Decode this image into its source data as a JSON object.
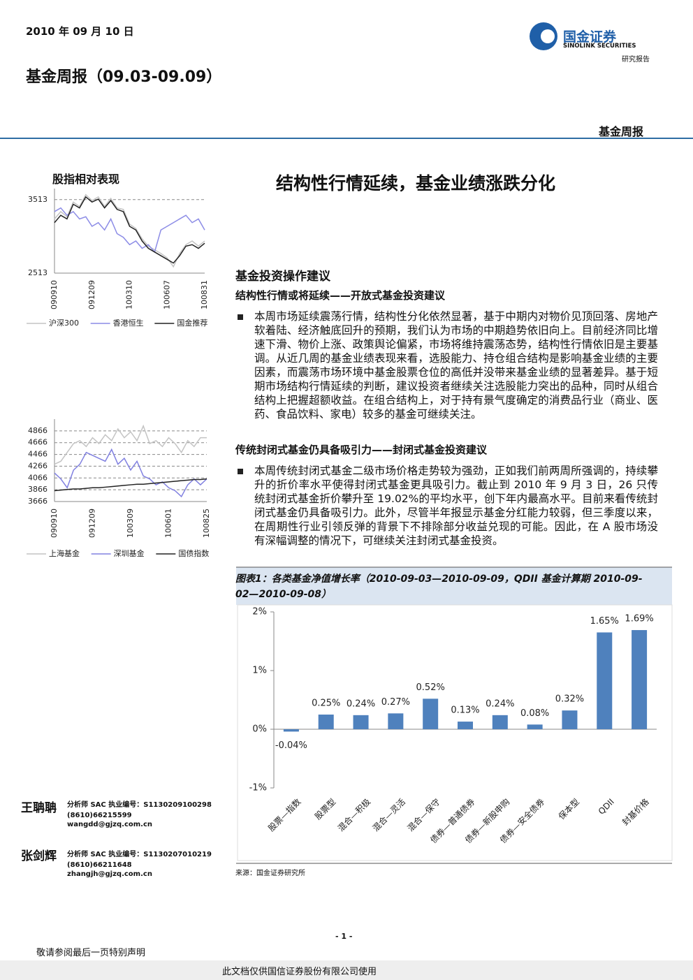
{
  "header": {
    "date": "2010 年 09 月 10 日",
    "title": "基金周报（09.03-09.09）",
    "logo_cn": "国金证券",
    "logo_en": "SINOLINK SECURITIES",
    "report_type": "研究报告",
    "section": "基金周报"
  },
  "main": {
    "headline": "结构性行情延续，基金业绩涨跌分化",
    "heading": "基金投资操作建议",
    "sections": [
      {
        "heading": "结构性行情或将延续——开放式基金投资建议",
        "paragraph": "本周市场延续震荡行情，结构性分化依然显著，基于中期内对物价见顶回落、房地产软着陆、经济触底回升的预期，我们认为市场的中期趋势依旧向上。目前经济同比增速下滑、物价上涨、政策舆论偏紧，市场将维持震荡态势，结构性行情依旧是主要基调。从近几周的基金业绩表现来看，选股能力、持仓组合结构是影响基金业绩的主要因素，而震荡市场环境中基金股票仓位的高低并没带来基金业绩的显著差异。基于短期市场结构行情延续的判断，建议投资者继续关注选股能力突出的品种，同时从组合结构上把握超额收益。在组合结构上，对于持有景气度确定的消费品行业（商业、医药、食品饮料、家电）较多的基金可继续关注。"
      },
      {
        "heading": "传统封闭式基金仍具备吸引力——封闭式基金投资建议",
        "paragraph": "本周传统封闭式基金二级市场价格走势较为强劲，正如我们前两周所强调的，持续攀升的折价率水平使得封闭式基金更具吸引力。截止到 2010 年 9 月 3 日，26 只传统封闭式基金折价攀升至 19.02%的平均水平，创下年内最高水平。目前来看传统封闭式基金仍具备吸引力。此外，尽管半年报显示基金分红能力较弱，但三季度以来，在周期性行业引领反弹的背景下不排除部分收益兑现的可能。因此，在 A 股市场没有深幅调整的情况下，可继续关注封闭式基金投资。"
      }
    ]
  },
  "chart_data": [
    {
      "type": "line",
      "title": "股指相对表现",
      "categories": [
        "090910",
        null,
        null,
        null,
        null,
        null,
        "091209",
        null,
        null,
        null,
        null,
        null,
        "100310",
        null,
        null,
        null,
        null,
        null,
        "100607",
        null,
        null,
        null,
        null,
        null,
        "100831"
      ],
      "series": [
        {
          "name": "沪深300",
          "color": "#c4c4c4",
          "values": [
            3250,
            3350,
            3280,
            3480,
            3420,
            3580,
            3500,
            3550,
            3420,
            3530,
            3400,
            3380,
            3180,
            3120,
            2980,
            2880,
            2830,
            2780,
            2720,
            2600,
            2780,
            2900,
            2950,
            2880,
            2950
          ]
        },
        {
          "name": "香港恒生",
          "color": "#8c8ce6",
          "values": [
            3350,
            3400,
            3300,
            3350,
            3250,
            3280,
            3150,
            3200,
            3100,
            3250,
            3050,
            3000,
            2900,
            2950,
            2850,
            2900,
            2800,
            3100,
            3150,
            3200,
            3250,
            3300,
            3200,
            3250,
            3100
          ]
        },
        {
          "name": "国金推荐",
          "color": "#222222",
          "values": [
            3200,
            3300,
            3250,
            3450,
            3400,
            3550,
            3480,
            3520,
            3400,
            3500,
            3380,
            3350,
            3150,
            3100,
            2950,
            2850,
            2800,
            2750,
            2700,
            2650,
            2750,
            2880,
            2900,
            2850,
            2920
          ]
        }
      ],
      "ylim": [
        2513,
        3663
      ],
      "yticks": [
        2513,
        3513
      ],
      "grid": true
    },
    {
      "type": "line",
      "categories": [
        "090910",
        null,
        null,
        null,
        null,
        null,
        "091209",
        null,
        null,
        null,
        null,
        null,
        "100309",
        null,
        null,
        null,
        null,
        null,
        "100601",
        null,
        null,
        null,
        null,
        null,
        "100825"
      ],
      "series": [
        {
          "name": "上海基金",
          "color": "#c4c4c4",
          "values": [
            4300,
            4350,
            4500,
            4650,
            4700,
            4600,
            4750,
            4650,
            4800,
            4700,
            4900,
            4750,
            4850,
            4700,
            4950,
            4650,
            4700,
            4600,
            4750,
            4650,
            4500,
            4700,
            4600,
            4750,
            4750
          ]
        },
        {
          "name": "深圳基金",
          "color": "#8080e0",
          "values": [
            4150,
            4050,
            3900,
            4200,
            4300,
            4500,
            4450,
            4400,
            4350,
            4550,
            4300,
            4400,
            4200,
            4350,
            4100,
            4050,
            3950,
            4000,
            3900,
            3850,
            3750,
            3950,
            4050,
            3950,
            4050
          ]
        },
        {
          "name": "国债指数",
          "color": "#222222",
          "values": [
            3850,
            3860,
            3870,
            3880,
            3880,
            3890,
            3900,
            3900,
            3910,
            3920,
            3930,
            3940,
            3950,
            3960,
            3960,
            3970,
            3980,
            3990,
            4000,
            4010,
            4020,
            4030,
            4040,
            4040,
            4050
          ]
        }
      ],
      "ylim": [
        3666,
        5066
      ],
      "yticks": [
        3666,
        3866,
        4066,
        4266,
        4466,
        4666,
        4866
      ],
      "grid": true
    },
    {
      "type": "bar",
      "title": "图表1：各类基金净值增长率（2010-09-03—2010-09-09，QDII 基金计算期 2010-09-02—2010-09-08）",
      "categories": [
        "股票—指数",
        "股票型",
        "混合—积极",
        "混合—灵活",
        "混合—保守",
        "债券—普通债券",
        "债券—新股申购",
        "债券—安全债券",
        "保本型",
        "QDII",
        "封基价格"
      ],
      "values": [
        -0.04,
        0.25,
        0.24,
        0.27,
        0.52,
        0.13,
        0.24,
        0.08,
        0.32,
        1.65,
        1.69
      ],
      "value_labels": [
        "-0.04%",
        "0.25%",
        "0.24%",
        "0.27%",
        "0.52%",
        "0.13%",
        "0.24%",
        "0.08%",
        "0.32%",
        "1.65%",
        "1.69%"
      ],
      "color": "#4f81bd",
      "ylim": [
        -1,
        2
      ],
      "yticks": [
        {
          "value": -1,
          "label": "-1%"
        },
        {
          "value": 0,
          "label": "0%"
        },
        {
          "value": 1,
          "label": "1%"
        },
        {
          "value": 2,
          "label": "2%"
        }
      ],
      "grid": false,
      "source": "来源：国金证券研究所"
    }
  ],
  "analysts": [
    {
      "name": "王聃聃",
      "id": "分析师 SAC 执业编号：S1130209100298",
      "phone": "(8610)66215599",
      "email": "wangdd@gjzq.com.cn"
    },
    {
      "name": "张剑辉",
      "id": "分析师 SAC 执业编号：S1130207010219",
      "phone": "(8610)66211648",
      "email": "zhangjh@gjzq.com.cn"
    }
  ],
  "footer": {
    "page": "- 1 -",
    "disclaimer": "敬请参阅最后一页特别声明",
    "watermark": "此文档仅供国信证券股份有限公司使用"
  }
}
